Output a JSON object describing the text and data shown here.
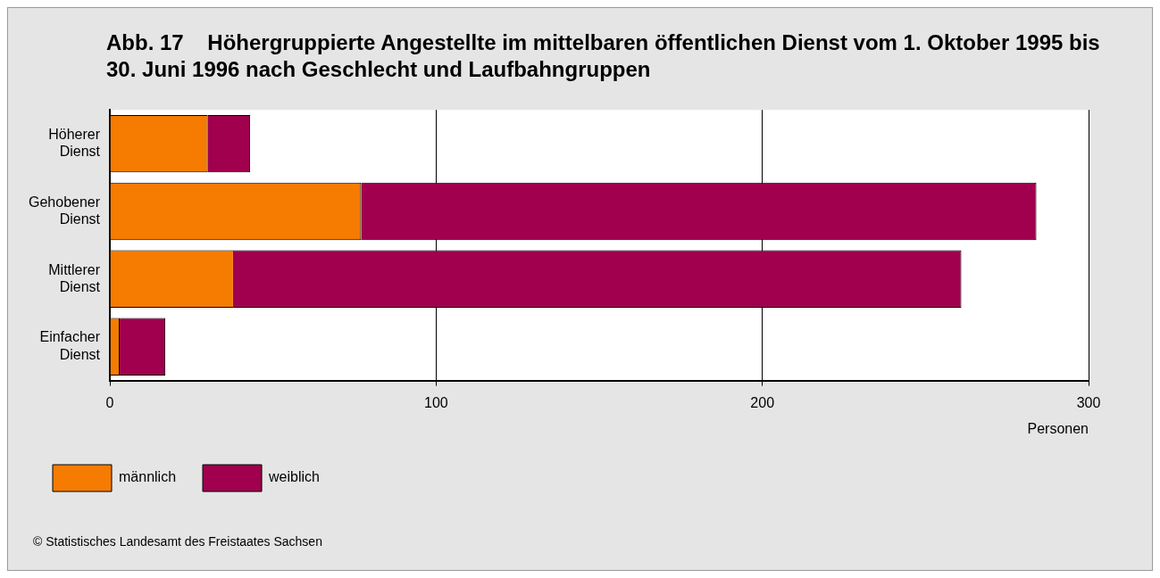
{
  "chart_data": {
    "type": "bar",
    "orientation": "horizontal",
    "stacked": true,
    "title": "Abb. 17    Höhergruppierte Angestellte im mittelbaren öffentlichen Dienst vom 1. Oktober 1995 bis 30. Juni 1996 nach Geschlecht und Laufbahngruppen",
    "categories": [
      "Höherer Dienst",
      "Gehobener Dienst",
      "Mittlerer Dienst",
      "Einfacher Dienst"
    ],
    "series": [
      {
        "name": "männlich",
        "color": "#f57c00",
        "values": [
          30,
          77,
          38,
          3
        ]
      },
      {
        "name": "weiblich",
        "color": "#a0004e",
        "values": [
          13,
          207,
          223,
          14
        ]
      }
    ],
    "xlim": [
      0,
      300
    ],
    "xticks": [
      0,
      100,
      200,
      300
    ],
    "xlabel": "Personen",
    "grid": "x",
    "legend": "bottom left",
    "annotations": [
      "© Statistisches Landesamt des Freistaates Sachsen"
    ]
  }
}
